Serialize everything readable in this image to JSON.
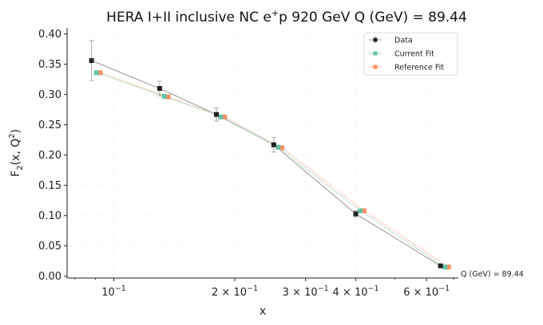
{
  "chart_data": {
    "type": "scatter",
    "title": "HERA I+II inclusive NC e⁺p 920 GeV Q (GeV) = 89.44",
    "title_parts": {
      "main": "HERA I+II inclusive NC e",
      "sup": "+",
      "rest": "p 920 GeV Q (GeV) = 89.44"
    },
    "xlabel": "x",
    "ylabel": "F₂(x, Q²)",
    "ylabel_parts": {
      "f": "F",
      "sub": "2",
      "mid": "(x, Q",
      "sup": "2",
      "end": ")"
    },
    "xscale": "log",
    "xlim": [
      0.0765,
      0.72
    ],
    "ylim": [
      -0.003,
      0.41
    ],
    "x_ticks_major": [
      {
        "value": 0.1,
        "base": "10",
        "exp": "−1",
        "coef": ""
      },
      {
        "value": 0.2,
        "base": "10",
        "exp": "−1",
        "coef": "2 × "
      },
      {
        "value": 0.3,
        "base": "10",
        "exp": "−1",
        "coef": "3 × "
      },
      {
        "value": 0.4,
        "base": "10",
        "exp": "−1",
        "coef": "4 × "
      },
      {
        "value": 0.6,
        "base": "10",
        "exp": "−1",
        "coef": "6 × "
      }
    ],
    "x_ticks_minor": [
      0.08,
      0.09,
      0.5,
      0.7
    ],
    "y_ticks": [
      {
        "value": 0.0,
        "label": "0.00"
      },
      {
        "value": 0.05,
        "label": "0.05"
      },
      {
        "value": 0.1,
        "label": "0.10"
      },
      {
        "value": 0.15,
        "label": "0.15"
      },
      {
        "value": 0.2,
        "label": "0.20"
      },
      {
        "value": 0.25,
        "label": "0.25"
      },
      {
        "value": 0.3,
        "label": "0.30"
      },
      {
        "value": 0.35,
        "label": "0.35"
      },
      {
        "value": 0.4,
        "label": "0.40"
      }
    ],
    "grid": true,
    "legend_position": "top-right",
    "series": [
      {
        "name": "Data",
        "color": "#222222",
        "line_color": "#555555",
        "x": [
          0.088,
          0.13,
          0.18,
          0.25,
          0.4,
          0.65
        ],
        "y": [
          0.356,
          0.31,
          0.267,
          0.217,
          0.103,
          0.017
        ],
        "yerr": [
          0.033,
          0.012,
          0.011,
          0.012,
          0.005,
          0.002
        ]
      },
      {
        "name": "Current Fit",
        "color": "#66c2a5",
        "line_color": "#66c2a5",
        "x": [
          0.0905,
          0.1335,
          0.1845,
          0.2565,
          0.4105,
          0.667
        ],
        "y": [
          0.336,
          0.297,
          0.263,
          0.213,
          0.108,
          0.015
        ]
      },
      {
        "name": "Reference Fit",
        "color": "#fc8d62",
        "line_color": "#fc8d62",
        "x": [
          0.0925,
          0.1365,
          0.1885,
          0.262,
          0.4195,
          0.681
        ],
        "y": [
          0.336,
          0.296,
          0.263,
          0.212,
          0.108,
          0.015
        ]
      }
    ],
    "annotation": "Q (GeV) = 89.44"
  }
}
